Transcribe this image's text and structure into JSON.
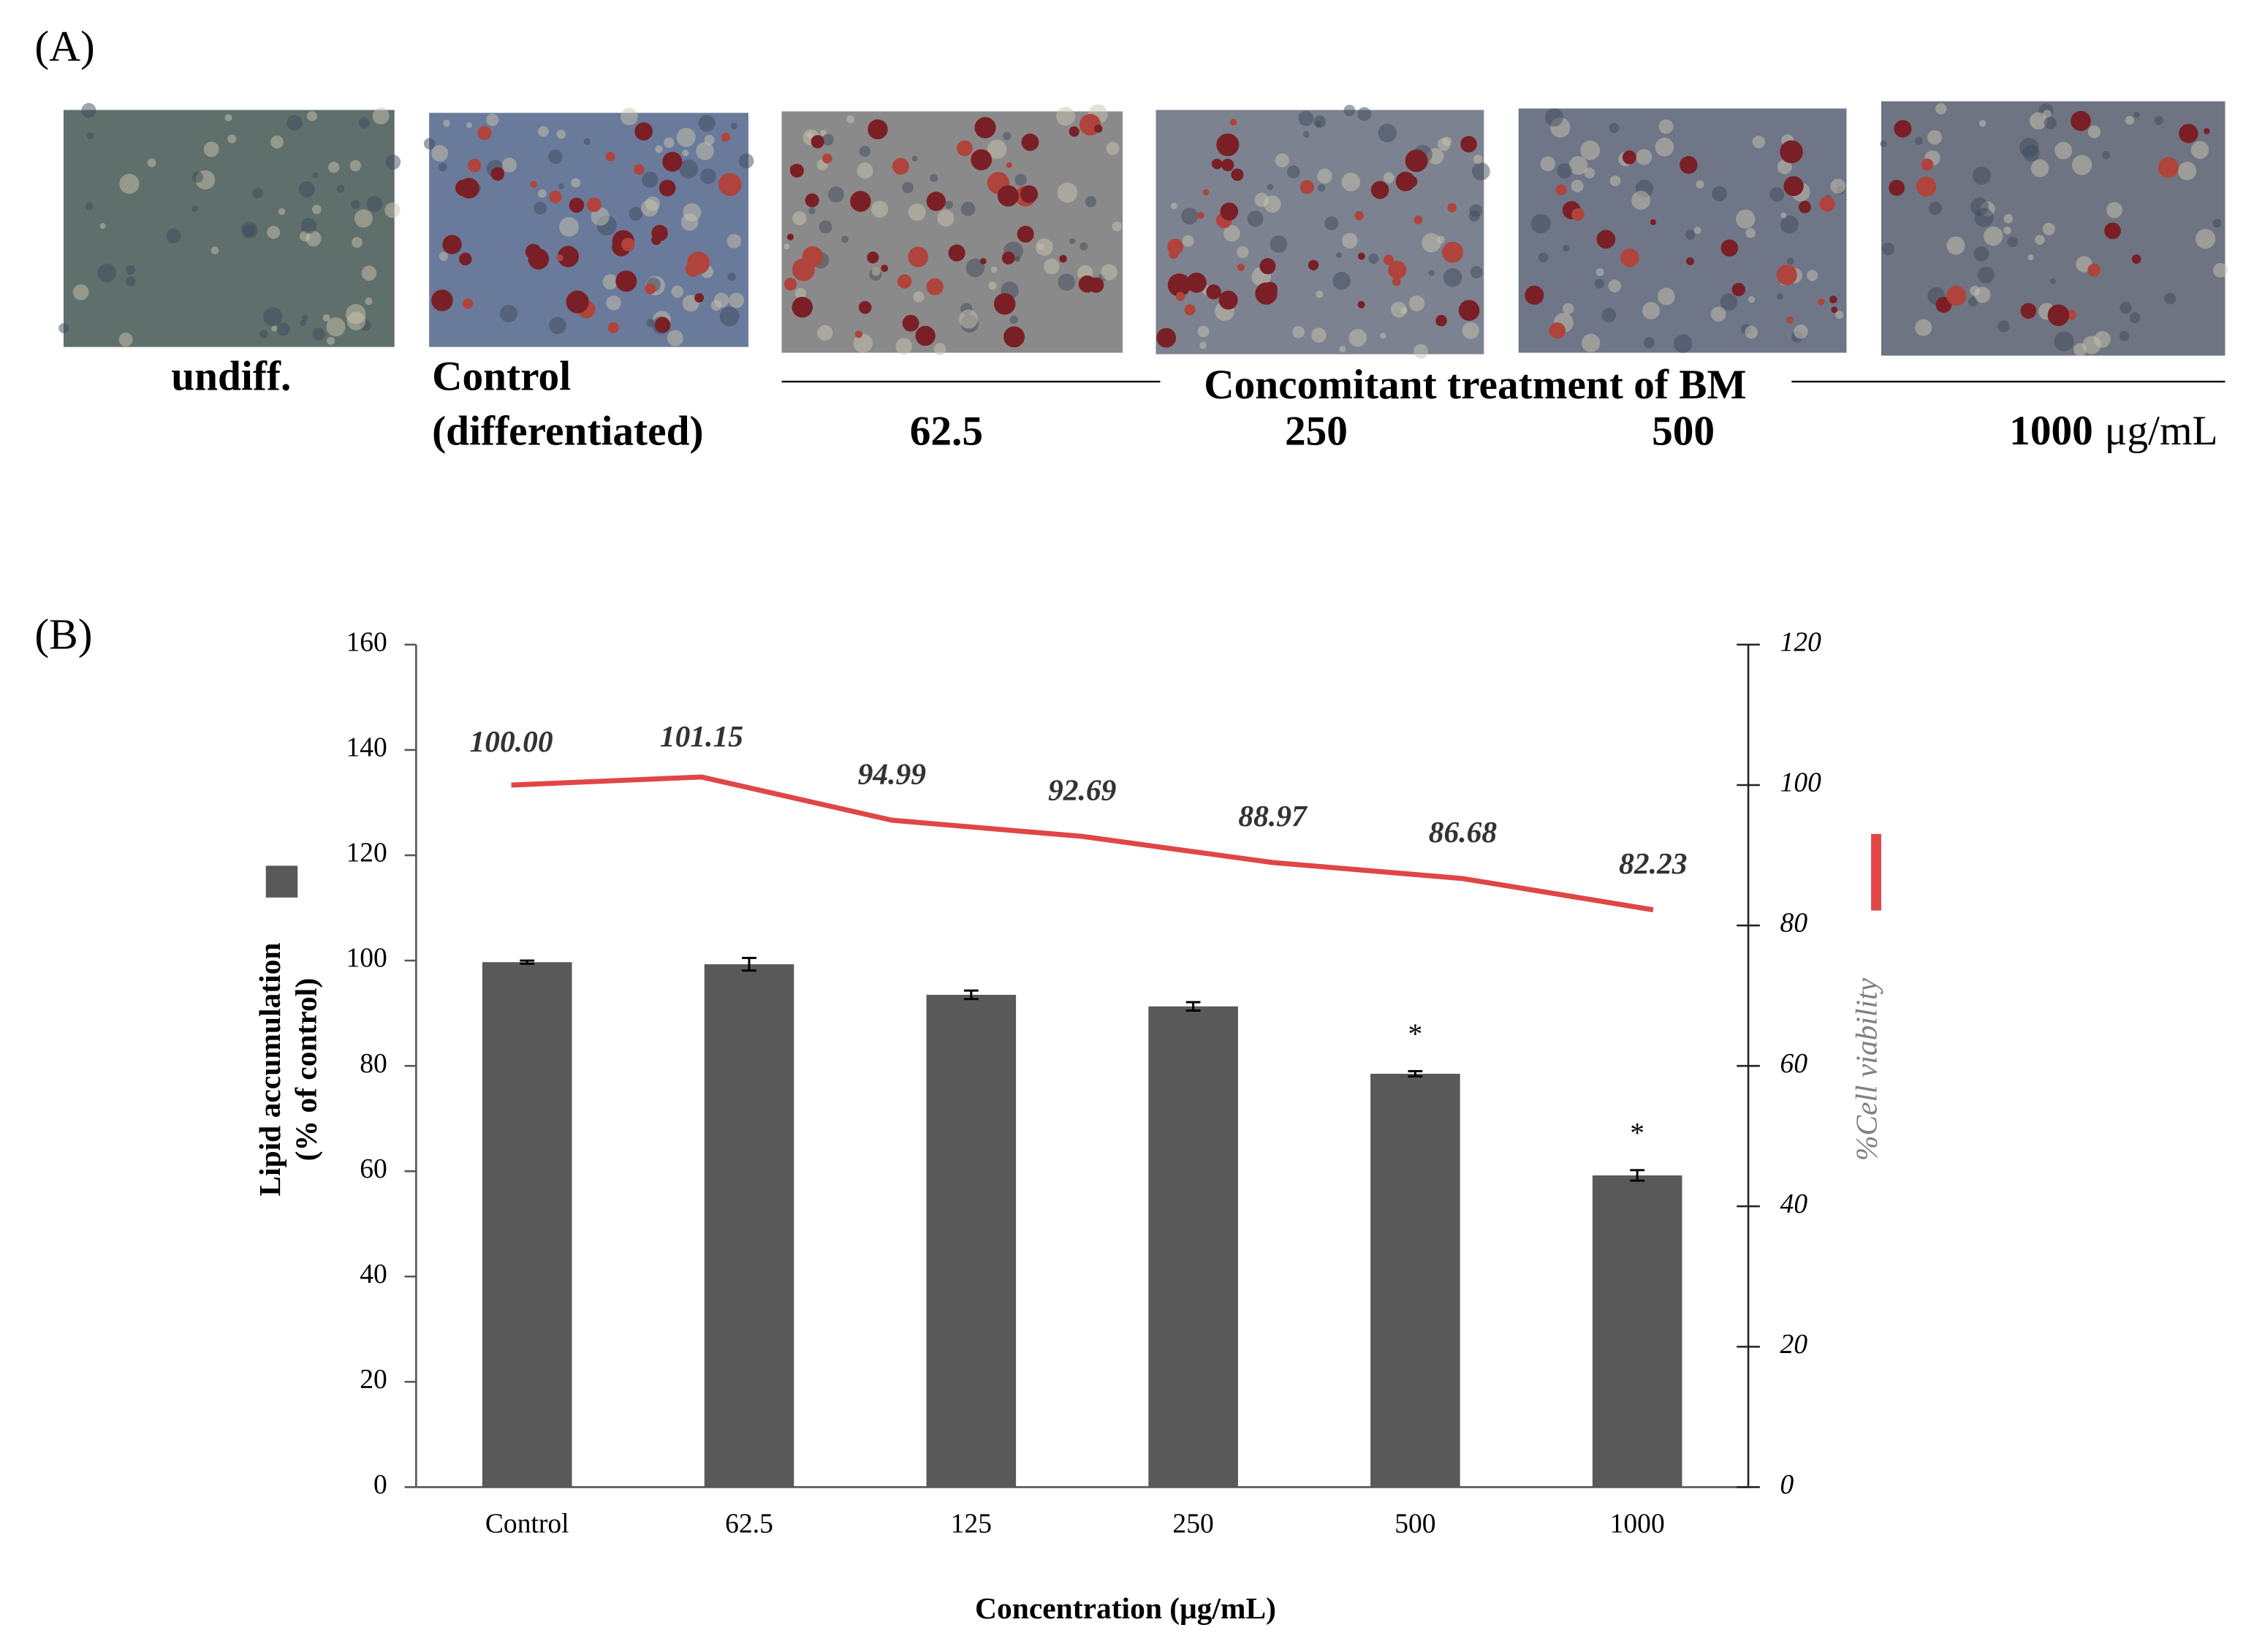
{
  "panel_a": {
    "label": "(A)",
    "undiff": "undiff.",
    "control": [
      "Control",
      "(differentiated)"
    ],
    "treatment": "Concomitant treatment of BM",
    "doses": [
      "62.5",
      "250",
      "500",
      "1000"
    ],
    "unit": "μg/mL"
  },
  "chart_data": [
    {
      "type": "bar",
      "title": "(B)",
      "categories": [
        "Control",
        "62.5",
        "125",
        "250",
        "500",
        "1000"
      ],
      "values": [
        99.7,
        99.3,
        93.5,
        91.3,
        78.5,
        59.2
      ],
      "errors": [
        0.3,
        1.2,
        0.8,
        0.8,
        0.5,
        1.0
      ],
      "significance": [
        null,
        null,
        null,
        null,
        "*",
        "*"
      ],
      "color": "#595959",
      "xlabel": "Concentration (μg/mL)",
      "ylabel": [
        "Lipid accumulation",
        "(% of control)"
      ],
      "ylim": [
        0,
        160
      ],
      "yticks": [
        0,
        20,
        40,
        60,
        80,
        100,
        120,
        140,
        160
      ]
    },
    {
      "type": "line",
      "categories": [
        null,
        null,
        null,
        null,
        null,
        null,
        null
      ],
      "values": [
        100,
        101.15,
        94.99,
        92.69,
        88.97,
        86.68,
        82.23
      ],
      "value_labels": [
        "100.00",
        "101.15",
        "94.99",
        "92.69",
        "88.97",
        "86.68",
        "82.23"
      ],
      "color": "#e04646",
      "axis": "y2",
      "y2label": "%Cell viability",
      "y2lim": [
        0,
        120
      ],
      "y2ticks": [
        0,
        20,
        40,
        60,
        80,
        100,
        120
      ]
    }
  ]
}
